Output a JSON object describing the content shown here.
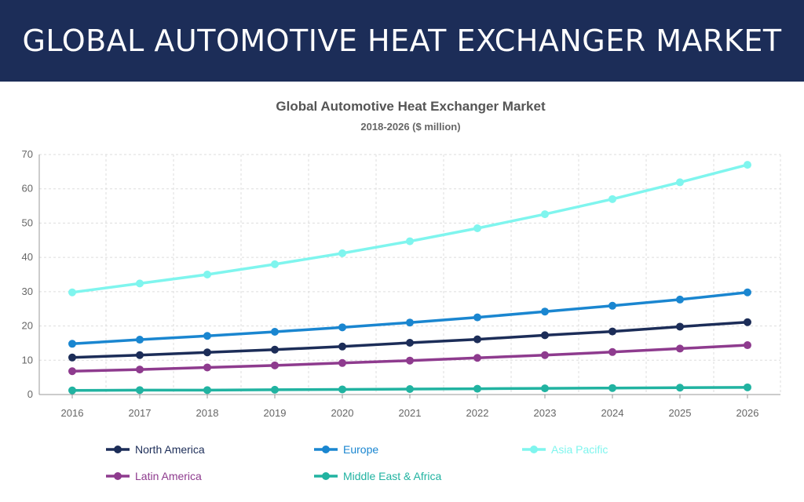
{
  "banner": {
    "title": "GLOBAL AUTOMOTIVE HEAT EXCHANGER MARKET",
    "background": "#1c2d58"
  },
  "chart_data": {
    "type": "line",
    "title": "Global Automotive Heat Exchanger Market",
    "subtitle": "2018-2026 ($ million)",
    "xlabel": "",
    "ylabel": "",
    "categories": [
      "2016",
      "2017",
      "2018",
      "2019",
      "2020",
      "2021",
      "2022",
      "2023",
      "2024",
      "2025",
      "2026"
    ],
    "ylim": [
      0,
      70
    ],
    "yticks": [
      0,
      10,
      20,
      30,
      40,
      50,
      60,
      70
    ],
    "grid": true,
    "legend_position": "bottom",
    "series": [
      {
        "name": "North America",
        "color": "#1c2d58",
        "values": [
          10.8,
          11.5,
          12.3,
          13.1,
          14.0,
          15.1,
          16.1,
          17.3,
          18.4,
          19.8,
          21.1
        ]
      },
      {
        "name": "Europe",
        "color": "#1a86d0",
        "values": [
          14.8,
          16.0,
          17.1,
          18.3,
          19.6,
          21.0,
          22.5,
          24.2,
          25.9,
          27.7,
          29.8
        ]
      },
      {
        "name": "Asia Pacific",
        "color": "#7ff5ee",
        "values": [
          29.8,
          32.4,
          35.0,
          38.0,
          41.2,
          44.7,
          48.5,
          52.6,
          57.0,
          61.9,
          67.0
        ]
      },
      {
        "name": "Latin America",
        "color": "#8e3b8e",
        "values": [
          6.8,
          7.3,
          7.9,
          8.5,
          9.2,
          9.9,
          10.7,
          11.5,
          12.4,
          13.4,
          14.4
        ]
      },
      {
        "name": "Middle East & Africa",
        "color": "#21b3a1",
        "values": [
          1.2,
          1.3,
          1.3,
          1.4,
          1.5,
          1.6,
          1.7,
          1.8,
          1.9,
          2.0,
          2.1
        ]
      }
    ]
  }
}
